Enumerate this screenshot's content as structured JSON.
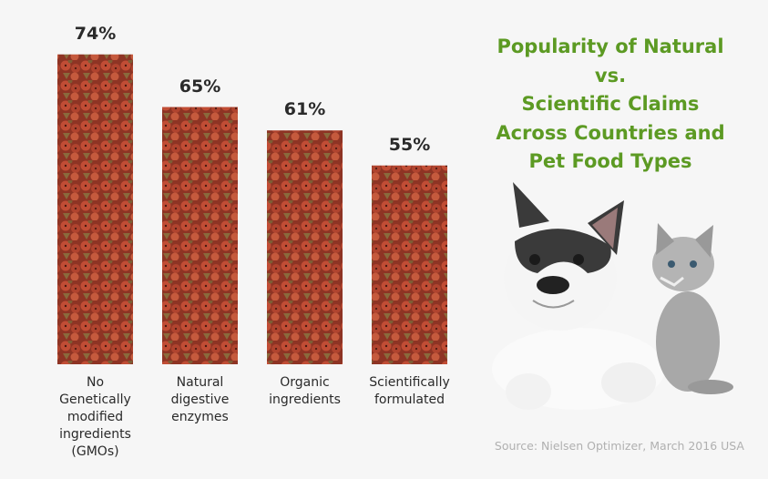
{
  "chart_data": {
    "type": "bar",
    "title": "Popularity of Natural vs. Scientific Claims Across Countries and Pet Food Types",
    "title_lines": [
      "Popularity of Natural",
      "vs.",
      "Scientific Claims",
      "Across Countries and",
      "Pet Food Types"
    ],
    "categories": [
      "No Genetically modified ingredients (GMOs)",
      "Natural digestive enzymes",
      "Organic ingredients",
      "Scientifically formulated"
    ],
    "category_lines": [
      [
        "No",
        "Genetically",
        "modified",
        "ingredients",
        "(GMOs)"
      ],
      [
        "Natural",
        "digestive",
        "enzymes"
      ],
      [
        "Organic",
        "ingredients"
      ],
      [
        "Scientifically",
        "formulated"
      ]
    ],
    "values": [
      74,
      65,
      61,
      55
    ],
    "value_labels": [
      "74%",
      "65%",
      "61%",
      "55%"
    ],
    "unit": "%",
    "grid": false,
    "bar_fill": "pet food kibble texture",
    "colors": {
      "title": "#5c9a23",
      "kibble_red": "#b8432e",
      "kibble_brown": "#8a6a3c",
      "background": "#f6f6f6"
    }
  },
  "source": "Source: Nielsen Optimizer, March 2016 USA",
  "illustration": "french-bulldog-and-kitten"
}
